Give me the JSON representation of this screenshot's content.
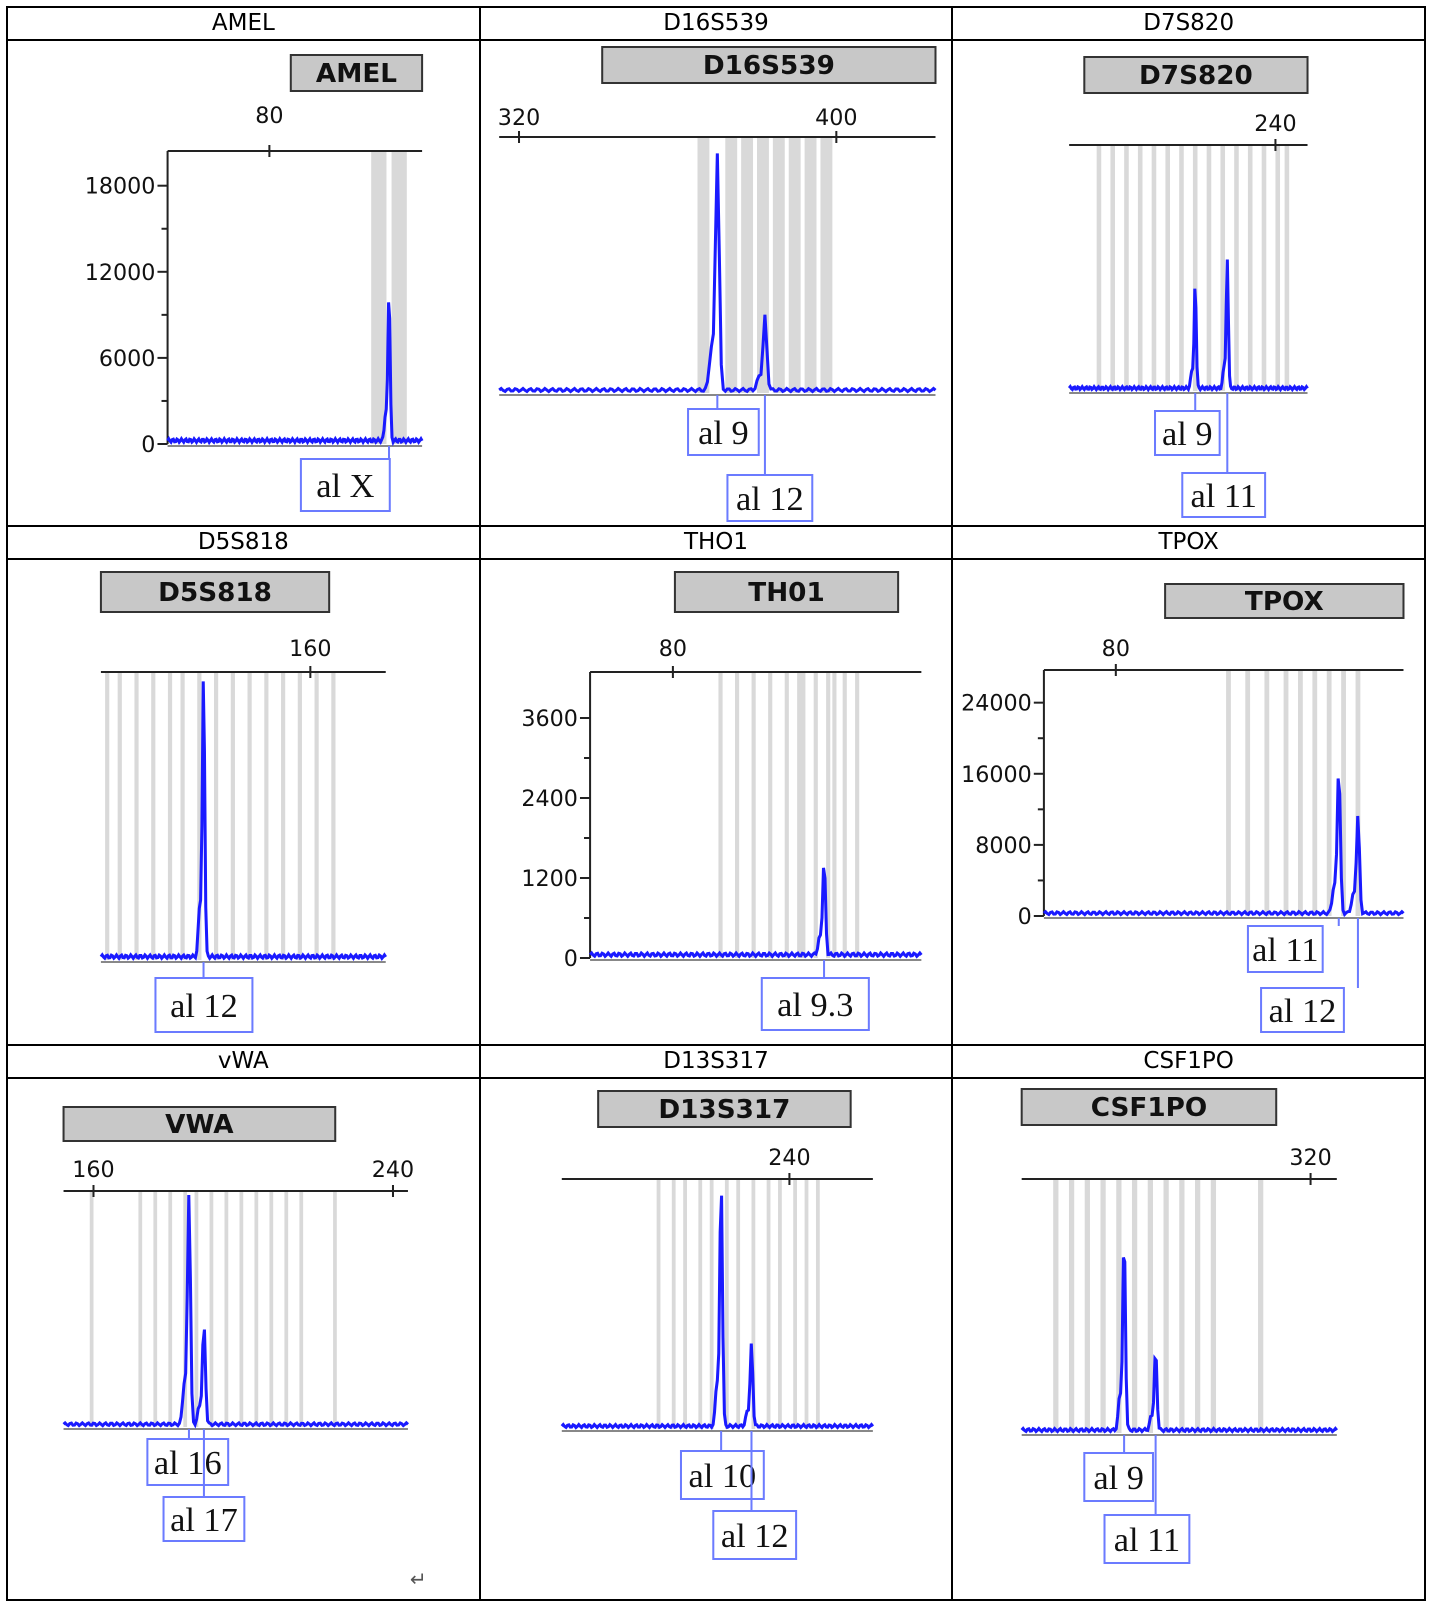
{
  "header_text": "",
  "colors": {
    "trace": "#1a1aff",
    "bin": "#d9d9d9",
    "allele_box": "#6b7bff",
    "locus_box": "#c8c8c8"
  },
  "chart_data": [
    {
      "type": "line",
      "cell_title": "AMEL",
      "locus_label": "AMEL",
      "xlim": [
        60,
        110
      ],
      "x_ticks": [
        80
      ],
      "ylim": [
        0,
        20000
      ],
      "y_ticks": [
        0,
        6000,
        12000,
        18000
      ],
      "bins": [
        [
          100,
          103
        ],
        [
          104,
          107
        ],
        [
          110,
          111
        ]
      ],
      "peaks": [
        {
          "x": 103.5,
          "height": 10500,
          "label": "al X"
        }
      ]
    },
    {
      "type": "line",
      "cell_title": "D16S539",
      "locus_label": "D16S539",
      "xlim": [
        315,
        425
      ],
      "x_ticks": [
        320,
        400
      ],
      "ylim": [
        0,
        7500
      ],
      "y_ticks": [],
      "bins": [
        [
          365,
          368
        ],
        [
          372,
          375
        ],
        [
          376,
          379
        ],
        [
          380,
          383
        ],
        [
          384,
          387
        ],
        [
          388,
          391
        ],
        [
          392,
          395
        ],
        [
          396,
          399
        ]
      ],
      "peaks": [
        {
          "x": 370,
          "height": 7100,
          "label": "al 9"
        },
        {
          "x": 382,
          "height": 2200,
          "label": "al 12"
        }
      ]
    },
    {
      "type": "line",
      "cell_title": "D7S820",
      "locus_label": "D7S820",
      "xlim": [
        195,
        247
      ],
      "x_ticks": [
        240
      ],
      "ylim": [
        0,
        6000
      ],
      "y_ticks": [],
      "bins": [
        [
          201,
          202
        ],
        [
          204,
          205
        ],
        [
          207,
          208
        ],
        [
          210,
          211
        ],
        [
          213,
          214
        ],
        [
          216,
          217
        ],
        [
          219,
          220
        ],
        [
          222,
          223
        ],
        [
          225,
          226
        ],
        [
          228,
          229
        ],
        [
          231,
          232
        ],
        [
          234,
          235
        ],
        [
          237,
          238
        ],
        [
          240,
          241
        ],
        [
          242,
          243
        ]
      ],
      "peaks": [
        {
          "x": 222.5,
          "height": 2600,
          "label": "al 9"
        },
        {
          "x": 229.5,
          "height": 3200,
          "label": "al 11"
        }
      ]
    },
    {
      "type": "line",
      "cell_title": "D5S818",
      "locus_label": "D5S818",
      "xlim": [
        110,
        178
      ],
      "x_ticks": [
        160
      ],
      "ylim": [
        0,
        5500
      ],
      "y_ticks": [],
      "bins": [
        [
          111,
          112
        ],
        [
          114,
          115
        ],
        [
          118,
          119
        ],
        [
          122,
          123
        ],
        [
          126,
          127
        ],
        [
          129,
          130
        ],
        [
          133,
          134
        ],
        [
          137,
          138
        ],
        [
          141,
          142
        ],
        [
          145,
          146
        ],
        [
          149,
          150
        ],
        [
          153,
          154
        ],
        [
          157,
          158
        ],
        [
          161,
          162
        ],
        [
          165,
          166
        ]
      ],
      "peaks": [
        {
          "x": 134.5,
          "height": 5500,
          "label": "al 12"
        }
      ]
    },
    {
      "type": "line",
      "cell_title": "THO1",
      "locus_label": "TH01",
      "xlim": [
        60,
        140
      ],
      "x_ticks": [
        80
      ],
      "ylim": [
        0,
        4200
      ],
      "y_ticks": [
        0,
        1200,
        2400,
        3600
      ],
      "bins": [
        [
          91,
          92
        ],
        [
          95,
          96
        ],
        [
          99,
          100
        ],
        [
          103,
          104
        ],
        [
          107,
          108
        ],
        [
          110,
          112
        ],
        [
          114,
          115
        ],
        [
          117,
          118
        ],
        [
          118.5,
          119.5
        ],
        [
          121,
          122
        ],
        [
          124,
          125
        ]
      ],
      "peaks": [
        {
          "x": 116.5,
          "height": 1400,
          "label": "al 9.3"
        }
      ]
    },
    {
      "type": "line",
      "cell_title": "TPOX",
      "locus_label": "TPOX",
      "xlim": [
        65,
        140
      ],
      "x_ticks": [
        80
      ],
      "ylim": [
        0,
        27000
      ],
      "y_ticks": [
        0,
        8000,
        16000,
        24000
      ],
      "bins": [
        [
          103,
          104
        ],
        [
          107,
          108
        ],
        [
          111,
          112
        ],
        [
          115,
          116
        ],
        [
          118,
          119
        ],
        [
          121,
          122
        ],
        [
          124,
          125
        ],
        [
          127,
          128
        ],
        [
          130,
          131
        ]
      ],
      "peaks": [
        {
          "x": 126.5,
          "height": 16500,
          "label": "al 11"
        },
        {
          "x": 130.5,
          "height": 11000,
          "label": "al 12"
        }
      ]
    },
    {
      "type": "line",
      "cell_title": "vWA",
      "locus_label": "VWA",
      "xlim": [
        152,
        244
      ],
      "x_ticks": [
        160,
        240
      ],
      "ylim": [
        0,
        6500
      ],
      "y_ticks": [],
      "bins": [
        [
          159,
          160
        ],
        [
          172,
          173
        ],
        [
          176,
          177
        ],
        [
          180,
          181
        ],
        [
          184,
          185
        ],
        [
          187,
          188
        ],
        [
          191,
          192
        ],
        [
          195,
          196
        ],
        [
          199,
          200
        ],
        [
          203,
          204
        ],
        [
          207,
          208
        ],
        [
          211,
          212
        ],
        [
          215,
          216
        ],
        [
          224,
          225
        ]
      ],
      "peaks": [
        {
          "x": 185.5,
          "height": 6500,
          "label": "al 16"
        },
        {
          "x": 189.5,
          "height": 2800,
          "label": "al 17"
        }
      ]
    },
    {
      "type": "line",
      "cell_title": "D13S317",
      "locus_label": "D13S317",
      "xlim": [
        180,
        262
      ],
      "x_ticks": [
        240
      ],
      "ylim": [
        0,
        6000
      ],
      "y_ticks": [],
      "bins": [
        [
          205,
          206
        ],
        [
          209,
          210
        ],
        [
          212,
          213
        ],
        [
          216,
          217
        ],
        [
          219,
          220
        ],
        [
          223,
          224
        ],
        [
          226,
          227
        ],
        [
          230,
          231
        ],
        [
          234,
          235
        ],
        [
          237,
          238
        ],
        [
          241,
          242
        ],
        [
          244,
          245
        ],
        [
          247,
          248
        ]
      ],
      "peaks": [
        {
          "x": 222,
          "height": 6000,
          "label": "al 10"
        },
        {
          "x": 230,
          "height": 2000,
          "label": "al 12"
        }
      ]
    },
    {
      "type": "line",
      "cell_title": "CSF1PO",
      "locus_label": "CSF1PO",
      "xlim": [
        265,
        325
      ],
      "x_ticks": [
        320
      ],
      "ylim": [
        0,
        5000
      ],
      "y_ticks": [],
      "bins": [
        [
          271,
          272
        ],
        [
          274,
          275
        ],
        [
          277,
          278
        ],
        [
          280,
          281
        ],
        [
          283,
          284
        ],
        [
          286,
          287
        ],
        [
          289,
          290
        ],
        [
          292,
          293
        ],
        [
          295,
          296
        ],
        [
          298,
          299
        ],
        [
          301,
          302
        ],
        [
          310,
          311
        ]
      ],
      "peaks": [
        {
          "x": 284.5,
          "height": 3900,
          "label": "al 9"
        },
        {
          "x": 290.5,
          "height": 1600,
          "label": "al 11"
        }
      ]
    }
  ],
  "footer_mark": "↵"
}
